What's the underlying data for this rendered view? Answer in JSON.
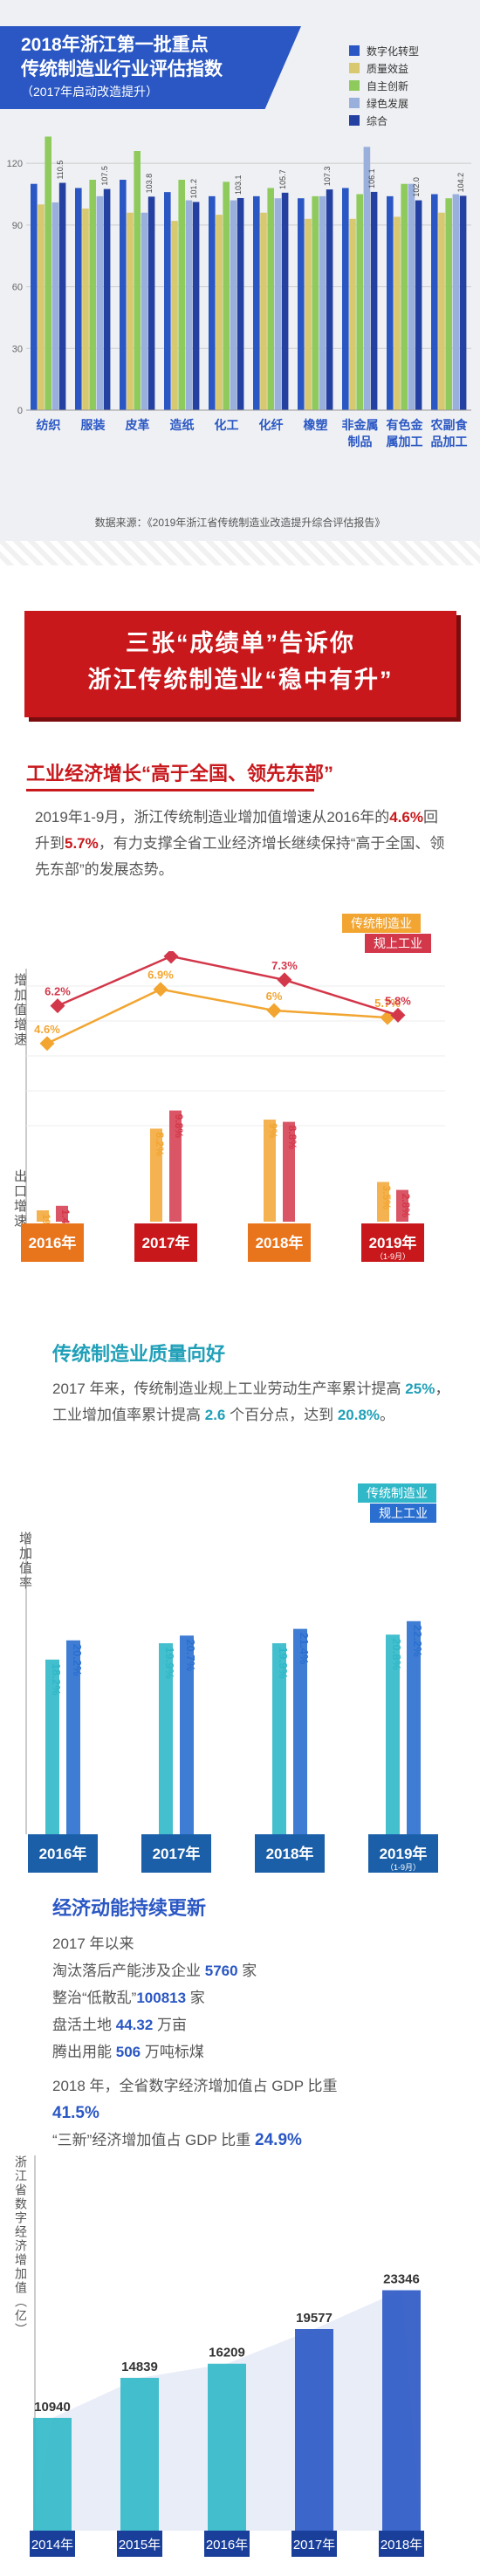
{
  "s1": {
    "title_line1": "2018年浙江第一批重点",
    "title_line2": "传统制造业行业评估指数",
    "subtitle": "（2017年启动改造提升）",
    "source": "数据来源：《2019年浙江省传统制造业改造提升综合评估报告》"
  },
  "chart_data": [
    {
      "type": "bar",
      "categories": [
        "纺织",
        "服装",
        "皮革",
        "造纸",
        "化工",
        "化纤",
        "橡塑",
        "非金属制品",
        "有色金属加工",
        "农副食品加工"
      ],
      "series": [
        {
          "name": "数字化转型",
          "color": "#2a57c4",
          "values": [
            110,
            108,
            112,
            106,
            104,
            104,
            103,
            108,
            104,
            105
          ]
        },
        {
          "name": "质量效益",
          "color": "#d8c870",
          "values": [
            100,
            98,
            96,
            92,
            95,
            96,
            93,
            93,
            94,
            96
          ]
        },
        {
          "name": "自主创新",
          "color": "#8ecb5c",
          "values": [
            133,
            112,
            126,
            112,
            111,
            108,
            104,
            105,
            110,
            103
          ]
        },
        {
          "name": "绿色发展",
          "color": "#9ab0dc",
          "values": [
            101,
            104,
            96,
            102,
            102,
            103,
            104,
            128,
            110,
            105
          ]
        },
        {
          "name": "综合",
          "color": "#2440a0",
          "values": [
            110.5,
            107.5,
            103.8,
            101.2,
            103.1,
            105.7,
            107.3,
            106.1,
            102.0,
            104.2
          ]
        }
      ],
      "labels": [
        "110.5",
        "107.5",
        "103.8",
        "101.2",
        "103.1",
        "105.7",
        "107.3",
        "106.1",
        "102.0",
        "104.2"
      ],
      "yticks": [
        "0",
        "30",
        "60",
        "90",
        "120"
      ],
      "ylim": [
        0,
        140
      ]
    },
    {
      "type": "bar",
      "categories": [
        "2016年",
        "2017年",
        "2018年",
        "2019年"
      ],
      "cat_sub": [
        "",
        "",
        "",
        "（1-9月）"
      ],
      "series": [
        {
          "name": "传统制造业",
          "color": "#f2a531",
          "values": [
            4.6,
            6.9,
            6.0,
            5.7
          ],
          "export": [
            1.0,
            8.2,
            9.0,
            3.5
          ]
        },
        {
          "name": "规上工业",
          "color": "#d3374a",
          "values": [
            6.2,
            8.3,
            7.3,
            5.8
          ],
          "export": [
            1.4,
            9.8,
            8.8,
            2.8
          ]
        }
      ],
      "ylabel_top": "增加值增速",
      "ylabel_bottom": "出口增速"
    },
    {
      "type": "bar",
      "categories": [
        "2016年",
        "2017年",
        "2018年",
        "2019年"
      ],
      "cat_sub": [
        "",
        "",
        "",
        "（1-9月）"
      ],
      "series": [
        {
          "name": "传统制造业",
          "color": "#30b8c8",
          "values": [
            18.2,
            19.9,
            19.9,
            20.8
          ]
        },
        {
          "name": "规上工业",
          "color": "#2a6fd0",
          "values": [
            20.2,
            20.7,
            21.4,
            22.2
          ]
        }
      ],
      "ylabel": "增加值率"
    },
    {
      "type": "bar",
      "categories": [
        "2014年",
        "2015年",
        "2016年",
        "2017年",
        "2018年"
      ],
      "values": [
        10940,
        14839,
        16209,
        19577,
        23346
      ],
      "ylabel": "浙江省数字经济增加值（亿）"
    }
  ],
  "banner": {
    "line1": "三张“成绩单”告诉你",
    "line2": "浙江传统制造业“稳中有升”"
  },
  "sec2": {
    "heading": "工业经济增长“高于全国、领先东部”",
    "text_a": "2019年1-9月，浙江传统制造业增加值增速从2016年的",
    "v1": "4.6%",
    "text_b": "回升到",
    "v2": "5.7%",
    "text_c": "，有力支撑全省工业经济增长继续保持“高于全国、领先东部”的发展态势。"
  },
  "sec3": {
    "heading": "传统制造业质量向好",
    "text_a": "2017 年来，传统制造业规上工业劳动生产率累计提高",
    "v1": "25%",
    "text_b": "，工业增加值率累计提高",
    "v2": "2.6",
    "text_c": "个百分点，达到",
    "v3": "20.8%",
    "text_d": "。"
  },
  "sec4": {
    "heading": "经济动能持续更新",
    "since": "2017 年以来",
    "l1a": "淘汰落后产能涉及企业",
    "l1v": "5760",
    "l1b": "家",
    "l2a": "整治“低散乱”",
    "l2v": "100813",
    "l2b": "家",
    "l3a": "盘活土地",
    "l3v": "44.32",
    "l3b": "万亩",
    "l4a": "腾出用能",
    "l4v": "506",
    "l4b": "万吨标煤",
    "t2018": "2018 年，全省数字经济增加值占 GDP 比重",
    "pct1": "41.5%",
    "sanxin": "“三新”经济增加值占 GDP 比重",
    "pct2": "24.9%"
  }
}
